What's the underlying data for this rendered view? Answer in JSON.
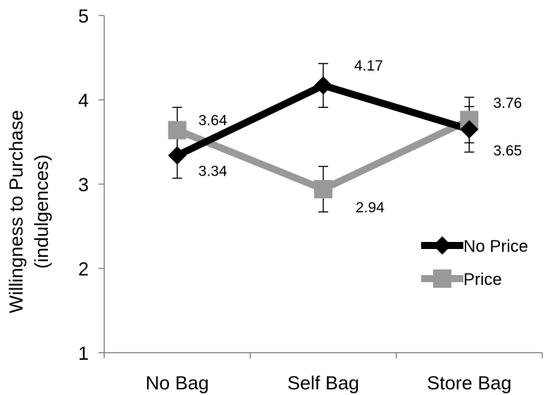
{
  "chart_data": {
    "type": "line",
    "categories": [
      "No Bag",
      "Self Bag",
      "Store Bag"
    ],
    "ylabel": [
      "Willingness to Purchase",
      "(indulgences)"
    ],
    "ylim": [
      1,
      5
    ],
    "yticks": [
      "1",
      "2",
      "3",
      "4",
      "5"
    ],
    "grid": false,
    "legend_position": "right",
    "series": [
      {
        "name": "No Price",
        "values": [
          3.34,
          4.17,
          3.65
        ],
        "labels": [
          "3.34",
          "4.17",
          "3.65"
        ],
        "error": [
          0.27,
          0.26,
          0.27
        ],
        "color": "#000000",
        "marker": "diamond"
      },
      {
        "name": "Price",
        "values": [
          3.64,
          2.94,
          3.76
        ],
        "labels": [
          "3.64",
          "2.94",
          "3.76"
        ],
        "error": [
          0.27,
          0.27,
          0.27
        ],
        "color": "#999999",
        "marker": "square"
      }
    ]
  }
}
